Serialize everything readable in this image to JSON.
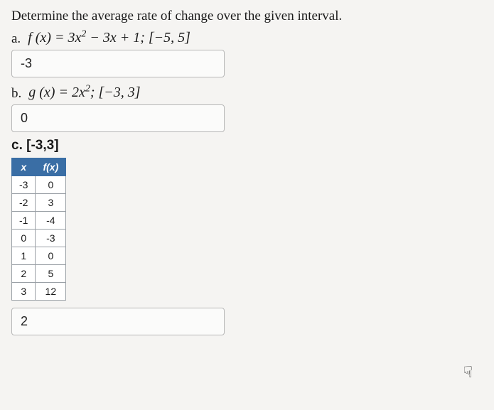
{
  "prompt": "Determine the average rate of change over the given interval.",
  "parts": {
    "a": {
      "label": "a.",
      "equation_html": "f (x) = 3x<sup>2</sup> − 3x + 1; [−5, 5]",
      "answer": "-3"
    },
    "b": {
      "label": "b.",
      "equation_html": "g (x) = 2x<sup>2</sup>; [−3, 3]",
      "answer": "0"
    },
    "c": {
      "label": "c.",
      "heading": "[-3,3]",
      "table": {
        "columns": [
          "x",
          "f(x)"
        ],
        "rows": [
          [
            "-3",
            "0"
          ],
          [
            "-2",
            "3"
          ],
          [
            "-1",
            "-4"
          ],
          [
            "0",
            "-3"
          ],
          [
            "1",
            "0"
          ],
          [
            "2",
            "5"
          ],
          [
            "3",
            "12"
          ]
        ],
        "header_bg": "#3a6ea5",
        "header_fg": "#ffffff",
        "cell_bg": "#ffffff",
        "border_color": "#9aa0a6"
      },
      "answer": "2"
    }
  },
  "cursor_glyph": "☟",
  "colors": {
    "page_bg": "#f5f4f2",
    "text": "#1a1a1a",
    "box_border": "#b7b7b7",
    "box_bg": "#fbfbfa"
  },
  "fonts": {
    "body": "Georgia, 'Times New Roman', serif",
    "answer": "Arial, Helvetica, sans-serif",
    "prompt_size_pt": 14,
    "answer_size_pt": 13
  }
}
